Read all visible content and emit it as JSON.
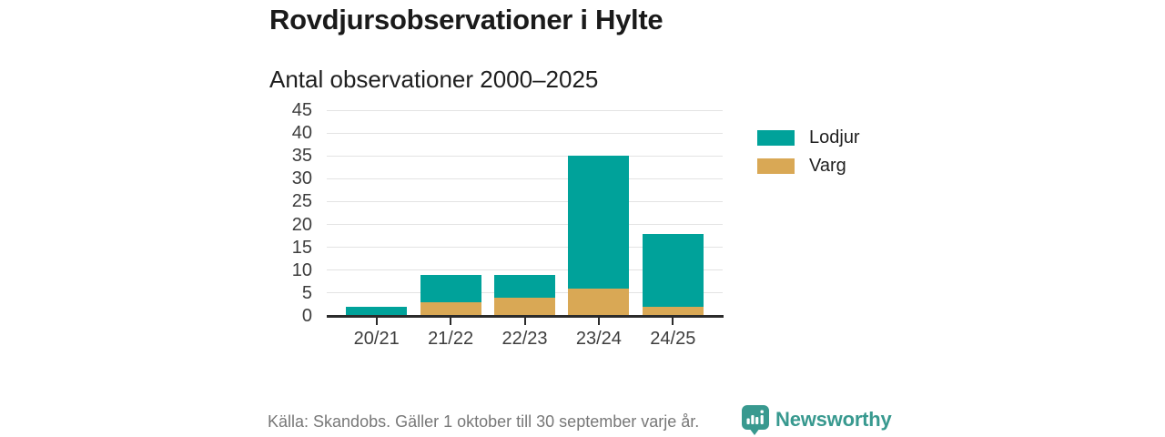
{
  "title": "Rovdjursobservationer i Hylte",
  "subtitle": "Antal observationer 2000–2025",
  "footer": {
    "source": "Källa: Skandobs. Gäller 1 oktober till 30 september varje år.",
    "brand": "Newsworthy",
    "brand_icon": "newsworthy-speech-bubble-chart-icon"
  },
  "colors": {
    "lodjur": "#00a29a",
    "varg": "#d9a855",
    "brand": "#38998f",
    "grid": "#e3e3e3",
    "axis": "#2b2b2b",
    "text": "#1a1a1a",
    "muted": "#787878"
  },
  "legend": [
    {
      "label": "Lodjur",
      "color_key": "lodjur"
    },
    {
      "label": "Varg",
      "color_key": "varg"
    }
  ],
  "chart_data": {
    "type": "bar",
    "stacked": true,
    "title": "Rovdjursobservationer i Hylte",
    "subtitle": "Antal observationer 2000–2025",
    "categories": [
      "20/21",
      "21/22",
      "22/23",
      "23/24",
      "24/25"
    ],
    "series": [
      {
        "name": "Varg",
        "color_key": "varg",
        "values": [
          0,
          3,
          4,
          6,
          2
        ]
      },
      {
        "name": "Lodjur",
        "color_key": "lodjur",
        "values": [
          2,
          6,
          5,
          29,
          16
        ]
      }
    ],
    "totals": [
      2,
      9,
      9,
      35,
      18
    ],
    "xlabel": "",
    "ylabel": "",
    "ylim": [
      0,
      45
    ],
    "yticks": [
      0,
      5,
      10,
      15,
      20,
      25,
      30,
      35,
      40,
      45
    ],
    "grid": true,
    "legend_position": "right",
    "legend_order": [
      "Lodjur",
      "Varg"
    ]
  }
}
